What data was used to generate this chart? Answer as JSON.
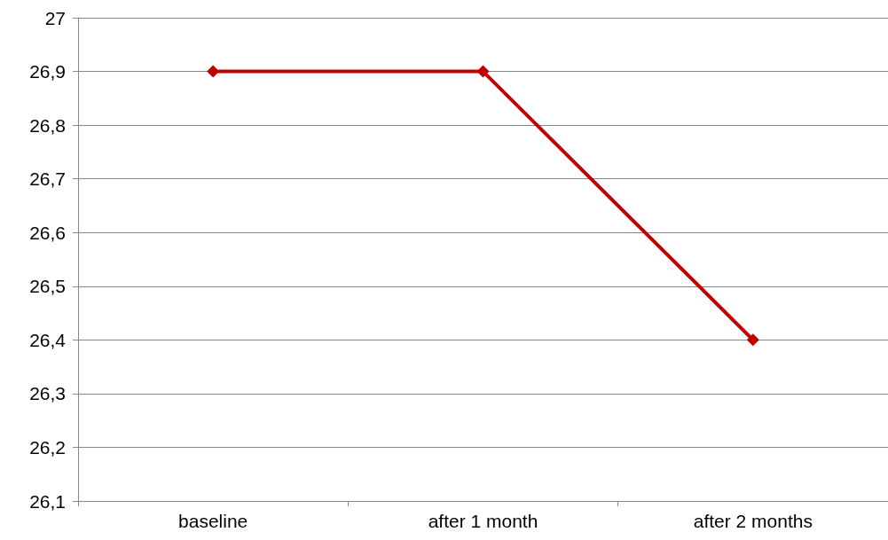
{
  "chart_data": {
    "type": "line",
    "categories": [
      "baseline",
      "after 1 month",
      "after 2 months"
    ],
    "series": [
      {
        "color": "#c00000",
        "values": [
          26.9,
          26.9,
          26.4
        ]
      }
    ],
    "ylim": [
      26.1,
      27
    ],
    "yticks": [
      {
        "value": 26.1,
        "label": "26,1"
      },
      {
        "value": 26.2,
        "label": "26,2"
      },
      {
        "value": 26.3,
        "label": "26,3"
      },
      {
        "value": 26.4,
        "label": "26,4"
      },
      {
        "value": 26.5,
        "label": "26,5"
      },
      {
        "value": 26.6,
        "label": "26,6"
      },
      {
        "value": 26.7,
        "label": "26,7"
      },
      {
        "value": 26.8,
        "label": "26,8"
      },
      {
        "value": 26.9,
        "label": "26,9"
      },
      27
    ],
    "grid": "y",
    "marker": "diamond",
    "line_style": "solid"
  }
}
